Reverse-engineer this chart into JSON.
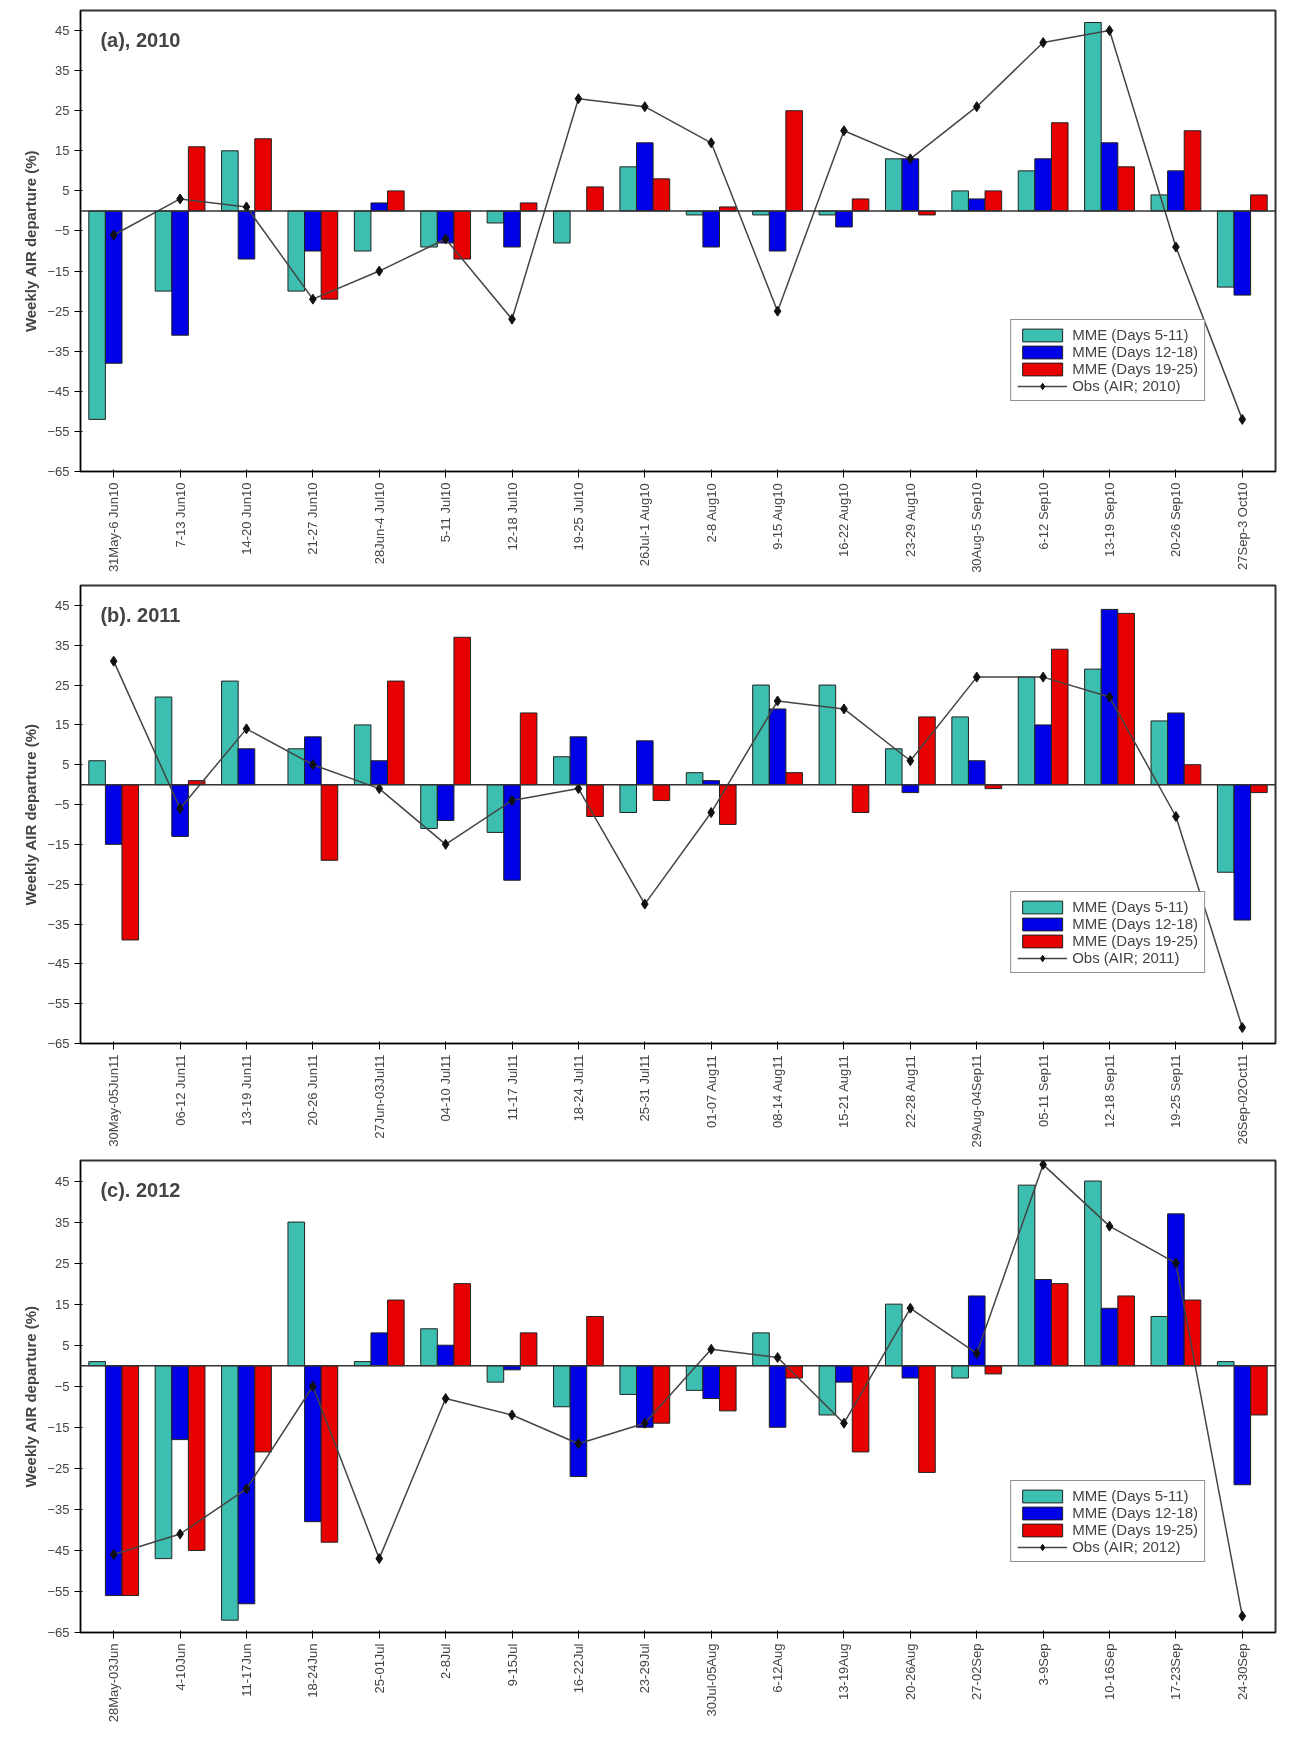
{
  "chart_data": [
    {
      "type": "bar",
      "title": "(a), 2010",
      "ylabel": "Weekly AIR departure (%)",
      "ylim": [
        -65,
        50
      ],
      "yticks": [
        45,
        35,
        25,
        15,
        5,
        -5,
        -15,
        -25,
        -35,
        -45,
        -55,
        -65
      ],
      "grid": false,
      "legend": "bottom right",
      "categories": [
        "31May-6 Jun10",
        "7-13 Jun10",
        "14-20 Jun10",
        "21-27 Jun10",
        "28Jun-4 Jul10",
        "5-11 Jul10",
        "12-18 Jul10",
        "19-25 Jul10",
        "26Jul-1 Aug10",
        "2-8 Aug10",
        "9-15 Aug10",
        "16-22 Aug10",
        "23-29 Aug10",
        "30Aug-5 Sep10",
        "6-12 Sep10",
        "13-19 Sep10",
        "20-26 Sep10",
        "27Sep-3 Oct10"
      ],
      "series": [
        {
          "name": "MME (Days 5-11)",
          "color": "#3cbfb0",
          "values": [
            -52,
            -20,
            15,
            -20,
            -10,
            -9,
            -3,
            -8,
            11,
            -1,
            -1,
            -1,
            13,
            5,
            10,
            47,
            4,
            -19
          ]
        },
        {
          "name": "MME (Days 12-18)",
          "color": "#0000e6",
          "values": [
            -38,
            -31,
            -12,
            -10,
            2,
            -8,
            -9,
            null,
            17,
            -9,
            -10,
            -4,
            13,
            3,
            13,
            17,
            10,
            -21
          ]
        },
        {
          "name": "MME (Days 19-25)",
          "color": "#e60000",
          "values": [
            null,
            16,
            18,
            -22,
            5,
            -12,
            2,
            6,
            8,
            1,
            25,
            3,
            -1,
            5,
            22,
            11,
            20,
            4
          ]
        },
        {
          "name": "Obs (AIR; 2010)",
          "type": "line",
          "color": "#444444",
          "marker": "diamond",
          "values": [
            -6,
            3,
            1,
            -22,
            -15,
            -7,
            -27,
            28,
            26,
            17,
            -25,
            20,
            13,
            26,
            42,
            45,
            -9,
            -52
          ]
        }
      ]
    },
    {
      "type": "bar",
      "title": "(b). 2011",
      "ylabel": "Weekly AIR departure (%)",
      "ylim": [
        -65,
        50
      ],
      "yticks": [
        45,
        35,
        25,
        15,
        5,
        -5,
        -15,
        -25,
        -35,
        -45,
        -55,
        -65
      ],
      "grid": false,
      "legend": "bottom right",
      "categories": [
        "30May-05Jun11",
        "06-12 Jun11",
        "13-19 Jun11",
        "20-26 Jun11",
        "27Jun-03Jul11",
        "04-10 Jul11",
        "11-17 Jul11",
        "18-24 Jul11",
        "25-31 Jul11",
        "01-07 Aug11",
        "08-14 Aug11",
        "15-21 Aug11",
        "22-28 Aug11",
        "29Aug-04Sep11",
        "05-11 Sep11",
        "12-18 Sep11",
        "19-25 Sep11",
        "26Sep-02Oct11"
      ],
      "series": [
        {
          "name": "MME (Days 5-11)",
          "color": "#3cbfb0",
          "values": [
            6,
            22,
            26,
            9,
            15,
            -11,
            -12,
            7,
            -7,
            3,
            25,
            25,
            9,
            17,
            27,
            29,
            16,
            -22
          ]
        },
        {
          "name": "MME (Days 12-18)",
          "color": "#0000e6",
          "values": [
            -15,
            -13,
            9,
            12,
            6,
            -9,
            -24,
            12,
            11,
            1,
            19,
            null,
            -2,
            6,
            15,
            44,
            18,
            -34
          ]
        },
        {
          "name": "MME (Days 19-25)",
          "color": "#e60000",
          "values": [
            -39,
            1,
            null,
            -19,
            26,
            37,
            18,
            -8,
            -4,
            -10,
            3,
            -7,
            17,
            -1,
            34,
            43,
            5,
            -2
          ]
        },
        {
          "name": "Obs (AIR; 2011)",
          "type": "line",
          "color": "#444444",
          "marker": "diamond",
          "values": [
            31,
            -6,
            14,
            5,
            -1,
            -15,
            -4,
            -1,
            -30,
            -7,
            21,
            19,
            6,
            27,
            27,
            22,
            -8,
            -61
          ]
        }
      ]
    },
    {
      "type": "bar",
      "title": "(c). 2012",
      "ylabel": "Weekly AIR departure (%)",
      "ylim": [
        -65,
        50
      ],
      "yticks": [
        45,
        35,
        25,
        15,
        5,
        -5,
        -15,
        -25,
        -35,
        -45,
        -55,
        -65
      ],
      "grid": false,
      "legend": "bottom right",
      "categories": [
        "28May-03Jun",
        "4-10Jun",
        "11-17Jun",
        "18-24Jun",
        "25-01Jul",
        "2-8Jul",
        "9-15Jul",
        "16-22Jul",
        "23-29Jul",
        "30Jul-05Aug",
        "6-12Aug",
        "13-19Aug",
        "20-26Aug",
        "27-02Sep",
        "3-9Sep",
        "10-16Sep",
        "17-23Sep",
        "24-30Sep"
      ],
      "series": [
        {
          "name": "MME (Days 5-11)",
          "color": "#3cbfb0",
          "values": [
            1,
            -47,
            -62,
            35,
            1,
            9,
            -4,
            -10,
            -7,
            -6,
            8,
            -12,
            15,
            -3,
            44,
            45,
            12,
            1
          ]
        },
        {
          "name": "MME (Days 12-18)",
          "color": "#0000e6",
          "values": [
            -56,
            -18,
            -58,
            -38,
            8,
            5,
            -1,
            -27,
            -15,
            -8,
            -15,
            -4,
            -3,
            17,
            21,
            14,
            37,
            -29
          ]
        },
        {
          "name": "MME (Days 19-25)",
          "color": "#e60000",
          "values": [
            -56,
            -45,
            -21,
            -43,
            16,
            20,
            8,
            12,
            -14,
            -11,
            -3,
            -21,
            -26,
            -2,
            20,
            17,
            16,
            -12
          ]
        },
        {
          "name": "Obs (AIR; 2012)",
          "type": "line",
          "color": "#444444",
          "marker": "diamond",
          "values": [
            -46,
            -41,
            -30,
            -5,
            -47,
            -8,
            -12,
            -19,
            -14,
            4,
            2,
            -14,
            14,
            3,
            49,
            34,
            25,
            -61
          ]
        }
      ]
    }
  ]
}
